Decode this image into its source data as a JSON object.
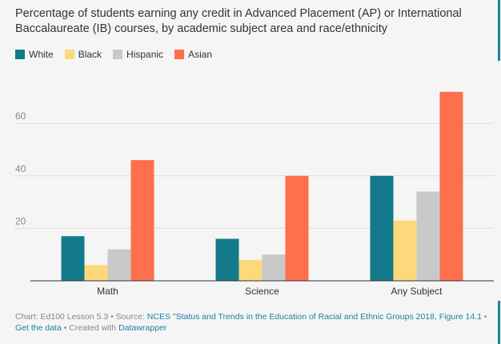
{
  "title": "Percentage of students earning any credit in Advanced Placement (AP) or International Baccalaureate (IB) courses, by academic subject area and race/ethnicity",
  "colors": {
    "White": "#137a8c",
    "Black": "#fcd97a",
    "Hispanic": "#c9c9c9",
    "Asian": "#fe6f4c",
    "grid": "#dddddd",
    "axis": "#333333"
  },
  "chart_data": {
    "type": "bar",
    "title": "Percentage of students earning any credit in Advanced Placement (AP) or International Baccalaureate (IB) courses, by academic subject area and race/ethnicity",
    "categories": [
      "Math",
      "Science",
      "Any Subject"
    ],
    "series": [
      {
        "name": "White",
        "values": [
          17,
          16,
          40
        ]
      },
      {
        "name": "Black",
        "values": [
          6,
          8,
          23
        ]
      },
      {
        "name": "Hispanic",
        "values": [
          12,
          10,
          34
        ]
      },
      {
        "name": "Asian",
        "values": [
          46,
          40,
          72
        ]
      }
    ],
    "yticks": [
      "20",
      "40",
      "60"
    ],
    "ylim": [
      0,
      75
    ],
    "grid": true,
    "legend": "top-left",
    "xlabel": "",
    "ylabel": ""
  },
  "footer": {
    "prefix": "Chart: Ed100 Lesson 5.3 • Source: ",
    "source_link": "NCES \"Status and Trends in the Education of Racial and Ethnic Groups 2018, Figure 14.1",
    "sep": " • ",
    "get_data": "Get the data",
    "created": " • Created with ",
    "tool": "Datawrapper"
  }
}
